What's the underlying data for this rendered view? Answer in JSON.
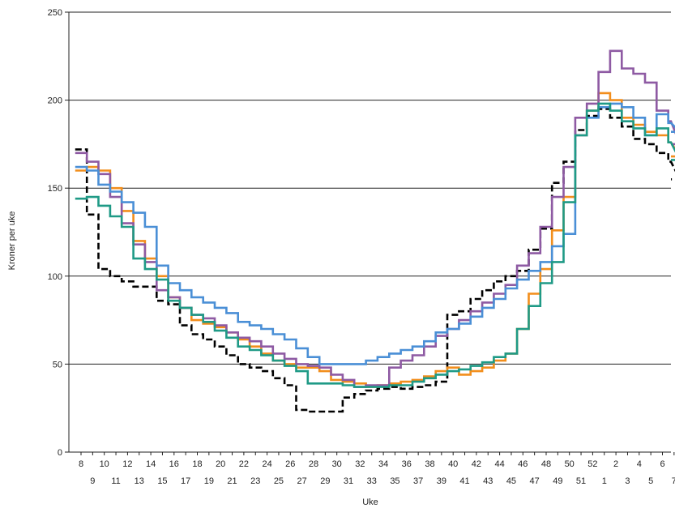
{
  "chart_data": {
    "type": "line",
    "step": true,
    "title": "",
    "xlabel": "Uke",
    "ylabel": "Kroner per uke",
    "ylim": [
      0,
      250
    ],
    "yticks": [
      0,
      50,
      100,
      150,
      200,
      250
    ],
    "grid": "horizontal",
    "legend": "none",
    "categories": [
      "8",
      "9",
      "10",
      "11",
      "12",
      "13",
      "14",
      "15",
      "16",
      "17",
      "18",
      "19",
      "20",
      "21",
      "22",
      "23",
      "24",
      "25",
      "26",
      "27",
      "28",
      "29",
      "30",
      "31",
      "32",
      "33",
      "34",
      "35",
      "36",
      "37",
      "38",
      "39",
      "40",
      "41",
      "42",
      "43",
      "44",
      "45",
      "46",
      "47",
      "48",
      "49",
      "50",
      "51",
      "52",
      "1",
      "2",
      "3",
      "4",
      "5",
      "6",
      "7",
      "8"
    ],
    "series": [
      {
        "color": "#000000",
        "dashed": true,
        "values": [
          172,
          135,
          104,
          100,
          97,
          94,
          94,
          86,
          84,
          72,
          67,
          64,
          60,
          55,
          50,
          48,
          46,
          42,
          38,
          24,
          23,
          23,
          23,
          31,
          33,
          35,
          36,
          37,
          36,
          37,
          38,
          40,
          78,
          80,
          87,
          92,
          97,
          100,
          103,
          115,
          127,
          153,
          165,
          183,
          191,
          195,
          190,
          185,
          178,
          175,
          170,
          165,
          155
        ]
      },
      {
        "color": "#F28E1C",
        "dashed": false,
        "values": [
          160,
          162,
          160,
          150,
          137,
          120,
          110,
          100,
          88,
          82,
          75,
          73,
          71,
          68,
          64,
          60,
          56,
          52,
          50,
          48,
          48,
          46,
          41,
          40,
          39,
          37,
          38,
          39,
          40,
          41,
          43,
          46,
          48,
          44,
          46,
          48,
          52,
          56,
          70,
          90,
          104,
          126,
          145,
          180,
          194,
          204,
          200,
          190,
          186,
          182,
          180,
          176,
          168
        ]
      },
      {
        "color": "#8E5AA3",
        "dashed": false,
        "values": [
          170,
          165,
          158,
          145,
          130,
          118,
          108,
          92,
          88,
          82,
          78,
          76,
          72,
          68,
          65,
          63,
          60,
          56,
          53,
          50,
          49,
          48,
          44,
          41,
          37,
          38,
          38,
          48,
          52,
          55,
          60,
          66,
          70,
          75,
          80,
          85,
          90,
          95,
          106,
          113,
          128,
          145,
          162,
          190,
          198,
          216,
          228,
          218,
          215,
          210,
          194,
          188,
          175
        ]
      },
      {
        "color": "#4A8FD6",
        "dashed": false,
        "values": [
          162,
          160,
          152,
          148,
          142,
          136,
          128,
          106,
          96,
          92,
          88,
          85,
          82,
          79,
          74,
          72,
          70,
          67,
          64,
          59,
          54,
          50,
          50,
          50,
          50,
          52,
          54,
          56,
          58,
          60,
          63,
          68,
          70,
          73,
          77,
          82,
          87,
          93,
          98,
          103,
          108,
          117,
          124,
          180,
          190,
          196,
          198,
          196,
          190,
          180,
          192,
          187,
          182
        ]
      },
      {
        "color": "#1F9A86",
        "dashed": false,
        "values": [
          144,
          145,
          140,
          134,
          128,
          110,
          104,
          98,
          86,
          82,
          78,
          74,
          69,
          65,
          60,
          58,
          55,
          52,
          49,
          46,
          39,
          39,
          39,
          38,
          37,
          37,
          37,
          38,
          38,
          40,
          42,
          44,
          46,
          47,
          49,
          51,
          54,
          56,
          70,
          83,
          96,
          108,
          142,
          180,
          194,
          198,
          194,
          188,
          184,
          180,
          184,
          176,
          166
        ]
      }
    ]
  }
}
